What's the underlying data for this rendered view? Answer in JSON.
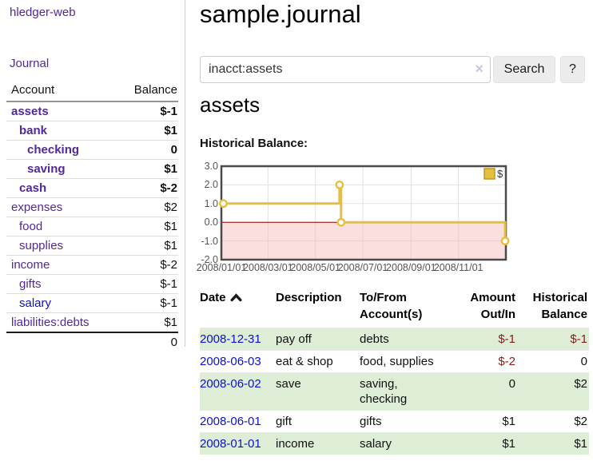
{
  "colors": {
    "link-purple": "#53279d",
    "link-blue": "#0f0fd0",
    "negative-strong": "#8b1a1a",
    "negative-muted": "#b97c7c",
    "row-green": "#ddedd6"
  },
  "sidebar": {
    "app_title": "hledger-web",
    "nav": {
      "journal": "Journal"
    },
    "accounts_table": {
      "headers": {
        "account": "Account",
        "balance": "Balance"
      },
      "accounts": [
        {
          "name": "assets",
          "indent": 0,
          "emphasized": true,
          "link_color": "purple",
          "balance": "$-1",
          "balance_color": "strong-negative"
        },
        {
          "name": "bank",
          "indent": 1,
          "emphasized": true,
          "link_color": "purple",
          "balance": "$1",
          "balance_color": "normal"
        },
        {
          "name": "checking",
          "indent": 2,
          "emphasized": true,
          "link_color": "purple",
          "balance": "0",
          "balance_color": "normal"
        },
        {
          "name": "saving",
          "indent": 2,
          "emphasized": true,
          "link_color": "purple",
          "balance": "$1",
          "balance_color": "normal"
        },
        {
          "name": "cash",
          "indent": 1,
          "emphasized": true,
          "link_color": "purple",
          "balance": "$-2",
          "balance_color": "strong-negative"
        },
        {
          "name": "expenses",
          "indent": 0,
          "emphasized": false,
          "link_color": "purple",
          "balance": "$2",
          "balance_color": "normal"
        },
        {
          "name": "food",
          "indent": 1,
          "emphasized": false,
          "link_color": "purple",
          "balance": "$1",
          "balance_color": "normal"
        },
        {
          "name": "supplies",
          "indent": 1,
          "emphasized": false,
          "link_color": "purple",
          "balance": "$1",
          "balance_color": "normal"
        },
        {
          "name": "income",
          "indent": 0,
          "emphasized": false,
          "link_color": "purple",
          "balance": "$-2",
          "balance_color": "muted-negative"
        },
        {
          "name": "gifts",
          "indent": 1,
          "emphasized": false,
          "link_color": "purple",
          "balance": "$-1",
          "balance_color": "muted-negative"
        },
        {
          "name": "salary",
          "indent": 1,
          "emphasized": false,
          "link_color": "blue",
          "balance": "$-1",
          "balance_color": "muted-negative"
        },
        {
          "name": "liabilities:debts",
          "indent": 0,
          "emphasized": false,
          "link_color": "purple",
          "balance": "$1",
          "balance_color": "normal"
        }
      ],
      "total": "0"
    }
  },
  "main": {
    "title": "sample.journal",
    "search": {
      "value": "inacct:assets",
      "clear_icon": "×",
      "button": "Search",
      "help": "?"
    },
    "account_heading": "assets",
    "chart_heading": "Historical Balance:"
  },
  "chart_data": {
    "type": "step-line",
    "title": "Historical Balance",
    "series": [
      {
        "name": "$",
        "points": [
          [
            "2008-01-01",
            1
          ],
          [
            "2008-06-01",
            2
          ],
          [
            "2008-06-03",
            0
          ],
          [
            "2008-12-31",
            -1
          ]
        ]
      }
    ],
    "xlim": [
      "2008-01-01",
      "2009-01-01"
    ],
    "ylim": [
      -2,
      3
    ],
    "yticks": [
      {
        "label": "3.0",
        "value": 3
      },
      {
        "label": "2.0",
        "value": 2
      },
      {
        "label": "1.0",
        "value": 1
      },
      {
        "label": "0.0",
        "value": 0
      },
      {
        "label": "-1.0",
        "value": -1
      },
      {
        "label": "-2.0",
        "value": -2
      }
    ],
    "xticks": [
      {
        "label": "2008/01/01",
        "date": "2008-01-01"
      },
      {
        "label": "2008/03/01",
        "date": "2008-03-01"
      },
      {
        "label": "2008/05/01",
        "date": "2008-05-01"
      },
      {
        "label": "2008/07/01",
        "date": "2008-07-01"
      },
      {
        "label": "2008/09/01",
        "date": "2008-09-01"
      },
      {
        "label": "2008/11/01",
        "date": "2008-11-01"
      }
    ],
    "legend": {
      "label": "$",
      "position": "top-right"
    },
    "grid": true,
    "colors": {
      "line": "#e6bf3e",
      "marker_fill": "#ffffff",
      "legend_border": "#bd9a27",
      "zero_line": "#8b0000",
      "negative_region": "rgba(247,184,184,0.45)",
      "grid": "#e2e2e2",
      "border": "#4a4a4a",
      "tick_text": "#555555"
    }
  },
  "register": {
    "columns": [
      {
        "label": "Date",
        "sort": "asc",
        "align": "left"
      },
      {
        "label": "Description",
        "align": "left"
      },
      {
        "label": "To/From\nAccount(s)",
        "align": "left"
      },
      {
        "label": "Amount\nOut/In",
        "align": "right"
      },
      {
        "label": "Historical\nBalance",
        "align": "right"
      }
    ],
    "rows": [
      {
        "date": "2008-12-31",
        "description": "pay off",
        "accounts": "debts",
        "amount": "$-1",
        "amount_color": "negative",
        "balance": "$-1",
        "balance_color": "negative"
      },
      {
        "date": "2008-06-03",
        "description": "eat & shop",
        "accounts": "food, supplies",
        "amount": "$-2",
        "amount_color": "negative",
        "balance": "0",
        "balance_color": "normal"
      },
      {
        "date": "2008-06-02",
        "description": "save",
        "accounts": "saving,\nchecking",
        "amount": "0",
        "amount_color": "normal",
        "balance": "$2",
        "balance_color": "normal"
      },
      {
        "date": "2008-06-01",
        "description": "gift",
        "accounts": "gifts",
        "amount": "$1",
        "amount_color": "normal",
        "balance": "$2",
        "balance_color": "normal"
      },
      {
        "date": "2008-01-01",
        "description": "income",
        "accounts": "salary",
        "amount": "$1",
        "amount_color": "normal",
        "balance": "$1",
        "balance_color": "normal"
      }
    ]
  }
}
